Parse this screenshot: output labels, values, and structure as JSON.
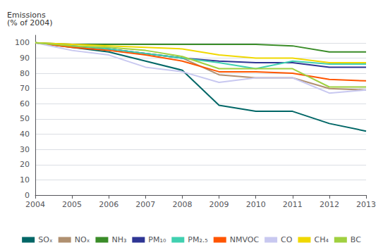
{
  "chart_data": {
    "type": "line",
    "ylabel": "Emissions\n(% of 2004)",
    "x": [
      2004,
      2005,
      2006,
      2007,
      2008,
      2009,
      2010,
      2011,
      2012,
      2013
    ],
    "series": [
      {
        "name": "SOₓ",
        "color": "#006666",
        "values": [
          100,
          97,
          94,
          88,
          82,
          59,
          55,
          55,
          47,
          42
        ]
      },
      {
        "name": "NOₓ",
        "color": "#b09070",
        "values": [
          100,
          98,
          96,
          93,
          90,
          79,
          77,
          77,
          70,
          69
        ]
      },
      {
        "name": "NH₃",
        "color": "#3a8c28",
        "values": [
          100,
          99,
          99,
          99,
          99,
          99,
          99,
          98,
          94,
          94
        ]
      },
      {
        "name": "PM₁₀",
        "color": "#2e3594",
        "values": [
          100,
          98,
          96,
          93,
          90,
          88,
          87,
          87,
          84,
          84
        ]
      },
      {
        "name": "PM₂.₅",
        "color": "#40d0b0",
        "values": [
          100,
          98,
          96,
          93,
          90,
          87,
          83,
          88,
          86,
          86
        ]
      },
      {
        "name": "NMVOC",
        "color": "#ff5500",
        "values": [
          100,
          97,
          95,
          92,
          88,
          81,
          81,
          80,
          76,
          75
        ]
      },
      {
        "name": "CO",
        "color": "#c8c8f0",
        "values": [
          100,
          95,
          92,
          84,
          81,
          74,
          77,
          77,
          67,
          69
        ]
      },
      {
        "name": "CH₄",
        "color": "#f0d800",
        "values": [
          100,
          99,
          98,
          97,
          96,
          92,
          90,
          90,
          87,
          87
        ]
      },
      {
        "name": "BC",
        "color": "#a0d040",
        "values": [
          100,
          98,
          97,
          95,
          91,
          83,
          83,
          83,
          71,
          71
        ]
      }
    ],
    "xlim": [
      2004,
      2013
    ],
    "xticks": [
      2004,
      2005,
      2006,
      2007,
      2008,
      2009,
      2010,
      2011,
      2012,
      2013
    ],
    "ylim": [
      0,
      105
    ],
    "yticks": [
      0,
      10,
      20,
      30,
      40,
      50,
      60,
      70,
      80,
      90,
      100
    ],
    "grid": true,
    "legend": "bottom"
  }
}
